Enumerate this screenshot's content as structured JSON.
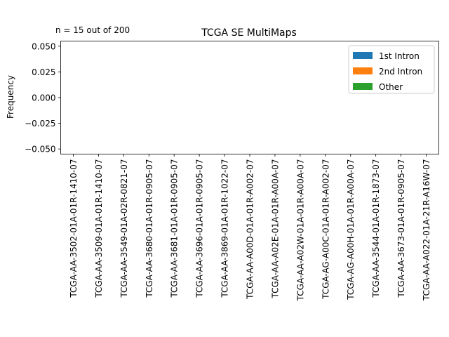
{
  "chart_data": {
    "type": "bar",
    "title": "TCGA SE MultiMaps",
    "annotation": "n = 15 out of 200",
    "xlabel": "",
    "ylabel": "Frequency",
    "ylim": [
      -0.055,
      0.055
    ],
    "yticks": [
      0.05,
      0.025,
      0.0,
      -0.025,
      -0.05
    ],
    "ytick_labels": [
      "0.050",
      "0.025",
      "0.000",
      "−0.025",
      "−0.050"
    ],
    "grid": false,
    "legend_position": "top-right",
    "categories": [
      "TCGA-AA-3502-01A-01R-1410-07",
      "TCGA-AA-3509-01A-01R-1410-07",
      "TCGA-AA-3549-01A-02R-0821-07",
      "TCGA-AA-3680-01A-01R-0905-07",
      "TCGA-AA-3681-01A-01R-0905-07",
      "TCGA-AA-3696-01A-01R-0905-07",
      "TCGA-AA-3869-01A-01R-1022-07",
      "TCGA-AA-A00D-01A-01R-A002-07",
      "TCGA-AA-A02E-01A-01R-A00A-07",
      "TCGA-AA-A02W-01A-01R-A00A-07",
      "TCGA-AG-A00C-01A-01R-A002-07",
      "TCGA-AG-A00H-01A-01R-A00A-07",
      "TCGA-AA-3544-01A-01R-1873-07",
      "TCGA-AA-3673-01A-01R-0905-07",
      "TCGA-AA-A022-01A-21R-A16W-07"
    ],
    "series": [
      {
        "name": "1st Intron",
        "color": "#1f77b4",
        "values": [
          0,
          0,
          0,
          0,
          0,
          0,
          0,
          0,
          0,
          0,
          0,
          0,
          0,
          0,
          0
        ]
      },
      {
        "name": "2nd Intron",
        "color": "#ff7f0e",
        "values": [
          0,
          0,
          0,
          0,
          0,
          0,
          0,
          0,
          0,
          0,
          0,
          0,
          0,
          0,
          0
        ]
      },
      {
        "name": "Other",
        "color": "#2ca02c",
        "values": [
          0,
          0,
          0,
          0,
          0,
          0,
          0,
          0,
          0,
          0,
          0,
          0,
          0,
          0,
          0
        ]
      }
    ]
  }
}
